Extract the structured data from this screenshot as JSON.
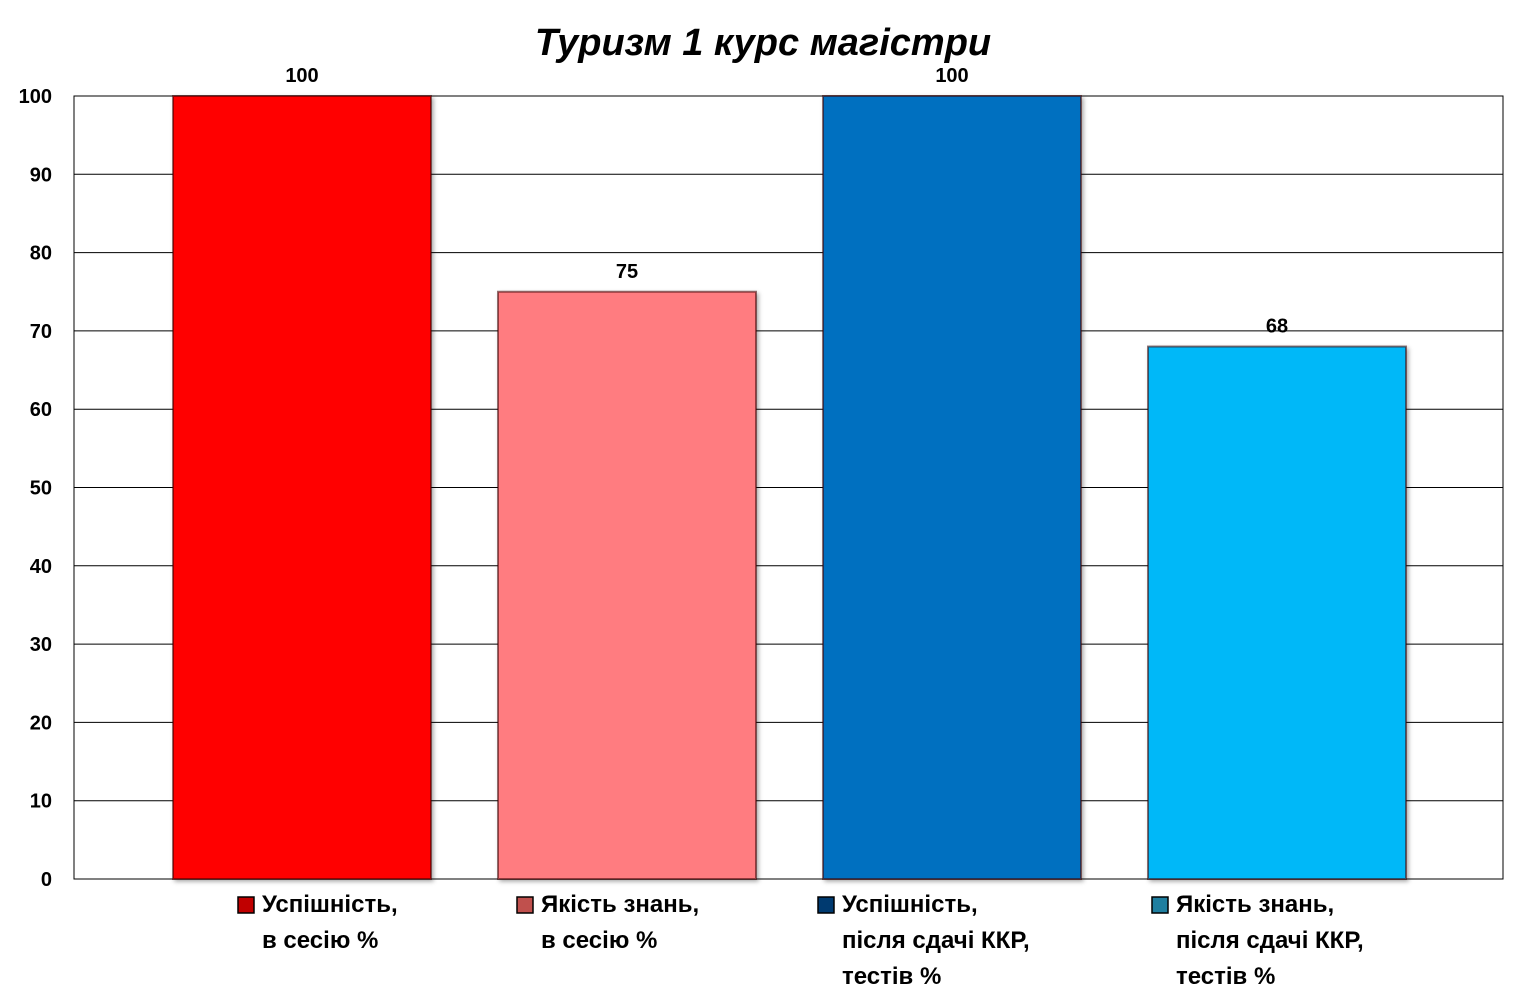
{
  "chart_data": {
    "type": "bar",
    "title": "Туризм 1 курс магістри",
    "xlabel": "",
    "ylabel": "",
    "ylim": [
      0,
      100
    ],
    "yticks": [
      0,
      10,
      20,
      30,
      40,
      50,
      60,
      70,
      80,
      90,
      100
    ],
    "grid": true,
    "legend_position": "bottom",
    "series": [
      {
        "name": "Успішність, в сесію %",
        "legend_lines": [
          "Успішність,",
          "в сесію %"
        ],
        "value": 100,
        "label": "100",
        "color": "#FF0000",
        "legend_color": "#C00000"
      },
      {
        "name": "Якість знань, в сесію %",
        "legend_lines": [
          "Якість знань,",
          "в сесію %"
        ],
        "value": 75,
        "label": "75",
        "color": "#FF7C80",
        "legend_color": "#C0504D"
      },
      {
        "name": "Успішність, після сдачі ККР, тестів %",
        "legend_lines": [
          "Успішність,",
          "після сдачі ККР,",
          "тестів %"
        ],
        "value": 100,
        "label": "100",
        "color": "#0070C0",
        "legend_color": "#003A70"
      },
      {
        "name": "Якість знань, після сдачі ККР, тестів %",
        "legend_lines": [
          "Якість знань,",
          "після сдачі ККР,",
          "тестів %"
        ],
        "value": 68,
        "label": "68",
        "color": "#00B8F8",
        "legend_color": "#1F7FA0"
      }
    ]
  }
}
